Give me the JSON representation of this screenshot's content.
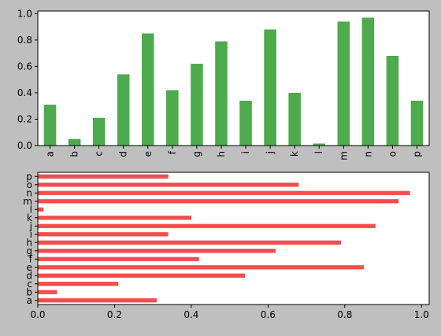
{
  "figure": {
    "background": "#bfbfbf",
    "axes_background": "#ffffff"
  },
  "chart_data": [
    {
      "type": "bar",
      "orientation": "vertical",
      "color": "#4daa4d",
      "categories": [
        "a",
        "b",
        "c",
        "d",
        "e",
        "f",
        "g",
        "h",
        "i",
        "j",
        "k",
        "l",
        "m",
        "n",
        "o",
        "p"
      ],
      "values": [
        0.31,
        0.05,
        0.21,
        0.54,
        0.85,
        0.42,
        0.62,
        0.79,
        0.34,
        0.88,
        0.4,
        0.015,
        0.94,
        0.97,
        0.68,
        0.34
      ],
      "ylim": [
        0,
        1.02
      ],
      "yticks": [
        {
          "value": 0.0,
          "label": "0.0"
        },
        {
          "value": 0.2,
          "label": "0.2"
        },
        {
          "value": 0.4,
          "label": "0.4"
        },
        {
          "value": 0.6,
          "label": "0.6"
        },
        {
          "value": 0.8,
          "label": "0.8"
        },
        {
          "value": 1.0,
          "label": "1.0"
        }
      ],
      "xtick_rotation": "vertical",
      "grid": false,
      "title": "",
      "xlabel": "",
      "ylabel": ""
    },
    {
      "type": "bar",
      "orientation": "horizontal",
      "color": "#f54c4c",
      "categories": [
        "a",
        "b",
        "c",
        "d",
        "e",
        "f",
        "g",
        "h",
        "i",
        "j",
        "k",
        "l",
        "m",
        "n",
        "o",
        "p"
      ],
      "values": [
        0.31,
        0.05,
        0.21,
        0.54,
        0.85,
        0.42,
        0.62,
        0.79,
        0.34,
        0.88,
        0.4,
        0.015,
        0.94,
        0.97,
        0.68,
        0.34
      ],
      "xlim": [
        0,
        1.02
      ],
      "xticks": [
        {
          "value": 0.0,
          "label": "0.0"
        },
        {
          "value": 0.2,
          "label": "0.2"
        },
        {
          "value": 0.4,
          "label": "0.4"
        },
        {
          "value": 0.6,
          "label": "0.6"
        },
        {
          "value": 0.8,
          "label": "0.8"
        },
        {
          "value": 1.0,
          "label": "1.0"
        }
      ],
      "grid": false,
      "title": "",
      "xlabel": "",
      "ylabel": ""
    }
  ]
}
